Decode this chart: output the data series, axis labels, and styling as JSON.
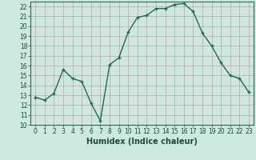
{
  "x": [
    0,
    1,
    2,
    3,
    4,
    5,
    6,
    7,
    8,
    9,
    10,
    11,
    12,
    13,
    14,
    15,
    16,
    17,
    18,
    19,
    20,
    21,
    22,
    23
  ],
  "y": [
    12.8,
    12.5,
    13.2,
    15.6,
    14.7,
    14.4,
    12.2,
    10.4,
    16.1,
    16.8,
    19.4,
    20.9,
    21.1,
    21.8,
    21.8,
    22.2,
    22.3,
    21.5,
    19.3,
    18.0,
    16.3,
    15.0,
    14.7,
    13.3
  ],
  "line_color": "#1a6b5a",
  "marker": "+",
  "bg_color": "#cce8df",
  "grid_color": "#b0d4ca",
  "xlabel": "Humidex (Indice chaleur)",
  "ylim": [
    10,
    22.5
  ],
  "xlim": [
    -0.5,
    23.5
  ],
  "yticks": [
    10,
    11,
    12,
    13,
    14,
    15,
    16,
    17,
    18,
    19,
    20,
    21,
    22
  ],
  "xticks": [
    0,
    1,
    2,
    3,
    4,
    5,
    6,
    7,
    8,
    9,
    10,
    11,
    12,
    13,
    14,
    15,
    16,
    17,
    18,
    19,
    20,
    21,
    22,
    23
  ],
  "tick_fontsize": 5.5,
  "xlabel_fontsize": 7,
  "line_width": 1.0,
  "marker_size": 3.5
}
